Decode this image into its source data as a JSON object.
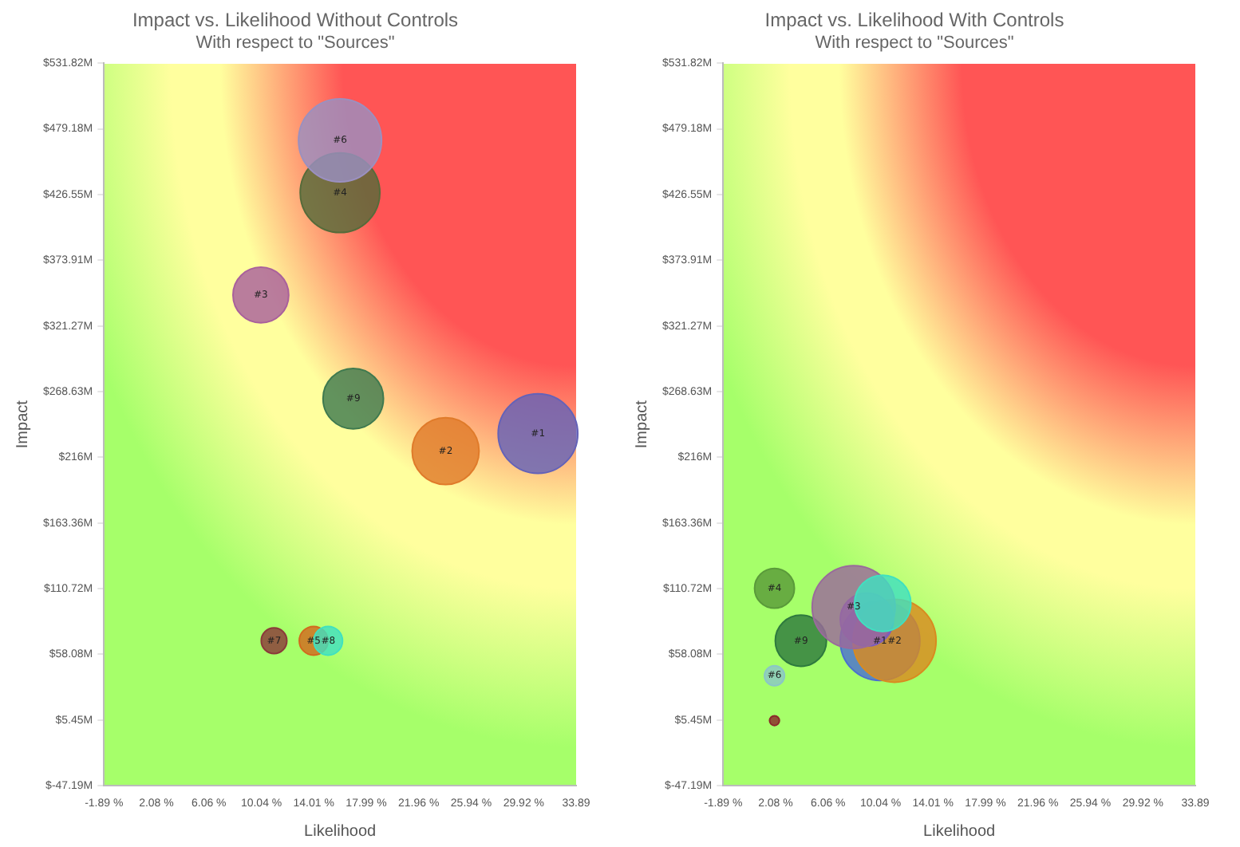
{
  "chart_data": [
    {
      "type": "bubble",
      "title": "Impact vs. Likelihood Without Controls",
      "subtitle": "With respect to \"Sources\"",
      "xlabel": "Likelihood",
      "ylabel": "Impact",
      "xlim": [
        -1.89,
        33.89
      ],
      "xticks": [
        {
          "value": -1.89,
          "label": "-1.89 %"
        },
        {
          "value": 2.08,
          "label": "2.08 %"
        },
        {
          "value": 6.06,
          "label": "6.06 %"
        },
        {
          "value": 10.04,
          "label": "10.04 %"
        },
        {
          "value": 14.01,
          "label": "14.01 %"
        },
        {
          "value": 17.99,
          "label": "17.99 %"
        },
        {
          "value": 21.96,
          "label": "21.96 %"
        },
        {
          "value": 25.94,
          "label": "25.94 %"
        },
        {
          "value": 29.92,
          "label": "29.92 %"
        },
        33.89
      ],
      "ylim": [
        -47.19,
        531.82
      ],
      "yticks": [
        {
          "value": -47.19,
          "label": "$-47.19M"
        },
        {
          "value": 5.45,
          "label": "$5.45M"
        },
        {
          "value": 58.08,
          "label": "$58.08M"
        },
        {
          "value": 110.72,
          "label": "$110.72M"
        },
        {
          "value": 163.36,
          "label": "$163.36M"
        },
        {
          "value": 216,
          "label": "$216M"
        },
        {
          "value": 268.63,
          "label": "$268.63M"
        },
        {
          "value": 321.27,
          "label": "$321.27M"
        },
        {
          "value": 373.91,
          "label": "$373.91M"
        },
        {
          "value": 426.55,
          "label": "$426.55M"
        },
        {
          "value": 479.18,
          "label": "$479.18M"
        },
        {
          "value": 531.82,
          "label": "$531.82M"
        }
      ],
      "series": [
        {
          "name": "#6",
          "color": "#9b90c0",
          "x": [
            16
          ],
          "values": [
            470
          ],
          "sizes": [
            1
          ]
        },
        {
          "name": "#4",
          "color": "#566b3a",
          "x": [
            16
          ],
          "values": [
            428
          ],
          "sizes": [
            0.92
          ]
        },
        {
          "name": "#3",
          "color": "#a9609c",
          "x": [
            10
          ],
          "values": [
            346
          ],
          "sizes": [
            0.45
          ]
        },
        {
          "name": "#9",
          "color": "#3f7a4f",
          "x": [
            17
          ],
          "values": [
            263
          ],
          "sizes": [
            0.53
          ]
        },
        {
          "name": "#2",
          "color": "#e07b2a",
          "x": [
            24
          ],
          "values": [
            221
          ],
          "sizes": [
            0.65
          ]
        },
        {
          "name": "#1",
          "color": "#6462b8",
          "x": [
            31
          ],
          "values": [
            235
          ],
          "sizes": [
            0.92
          ]
        },
        {
          "name": "#7",
          "color": "#8b3a3a",
          "x": [
            11
          ],
          "values": [
            69
          ],
          "sizes": [
            0.095
          ]
        },
        {
          "name": "#8",
          "color": "#40e0c0",
          "x": [
            15.1
          ],
          "values": [
            69
          ],
          "sizes": [
            0.12
          ]
        },
        {
          "name": "#5",
          "color": "#d2691e",
          "x": [
            14
          ],
          "values": [
            69
          ],
          "sizes": [
            0.12
          ]
        }
      ]
    },
    {
      "type": "bubble",
      "title": "Impact vs. Likelihood With Controls",
      "subtitle": "With respect to \"Sources\"",
      "xlabel": "Likelihood",
      "ylabel": "Impact",
      "xlim": [
        -1.89,
        33.89
      ],
      "xticks": [
        {
          "value": -1.89,
          "label": "-1.89 %"
        },
        {
          "value": 2.08,
          "label": "2.08 %"
        },
        {
          "value": 6.06,
          "label": "6.06 %"
        },
        {
          "value": 10.04,
          "label": "10.04 %"
        },
        {
          "value": 14.01,
          "label": "14.01 %"
        },
        {
          "value": 17.99,
          "label": "17.99 %"
        },
        {
          "value": 21.96,
          "label": "21.96 %"
        },
        {
          "value": 25.94,
          "label": "25.94 %"
        },
        {
          "value": 29.92,
          "label": "29.92 %"
        },
        33.89
      ],
      "ylim": [
        -47.19,
        531.82
      ],
      "yticks": [
        {
          "value": -47.19,
          "label": "$-47.19M"
        },
        {
          "value": 5.45,
          "label": "$5.45M"
        },
        {
          "value": 58.08,
          "label": "$58.08M"
        },
        {
          "value": 110.72,
          "label": "$110.72M"
        },
        {
          "value": 163.36,
          "label": "$163.36M"
        },
        {
          "value": 216,
          "label": "$216M"
        },
        {
          "value": 268.63,
          "label": "$268.63M"
        },
        {
          "value": 321.27,
          "label": "$321.27M"
        },
        {
          "value": 373.91,
          "label": "$373.91M"
        },
        {
          "value": 426.55,
          "label": "$426.55M"
        },
        {
          "value": 479.18,
          "label": "$479.18M"
        },
        {
          "value": 531.82,
          "label": "$531.82M"
        }
      ],
      "series": [
        {
          "color": "#40e0c0",
          "x": [
            10.2
          ],
          "values": [
            99
          ],
          "sizes": [
            0.46
          ]
        },
        {
          "name": "#3",
          "color": "#9a6a9c",
          "x": [
            8
          ],
          "values": [
            96
          ],
          "sizes": [
            1
          ]
        },
        {
          "color": "#7a5cc0",
          "x": [
            9
          ],
          "values": [
            86
          ],
          "sizes": [
            0.41
          ]
        },
        {
          "name": "#2",
          "color": "#d98a20",
          "x": [
            11.1
          ],
          "values": [
            69
          ],
          "sizes": [
            1
          ]
        },
        {
          "name": "#1",
          "color": "#4b6fd0",
          "x": [
            10
          ],
          "values": [
            69
          ],
          "sizes": [
            0.92
          ]
        },
        {
          "name": "#9",
          "color": "#2e7a3e",
          "x": [
            4
          ],
          "values": [
            69
          ],
          "sizes": [
            0.38
          ]
        },
        {
          "name": "#4",
          "color": "#5a9a3a",
          "x": [
            2
          ],
          "values": [
            111
          ],
          "sizes": [
            0.23
          ]
        },
        {
          "name": "#6",
          "color": "#8ac6c6",
          "x": [
            2
          ],
          "values": [
            41
          ],
          "sizes": [
            0.058
          ]
        },
        {
          "color": "#8b2a2a",
          "x": [
            2
          ],
          "values": [
            5
          ],
          "sizes": [
            0.014
          ]
        }
      ]
    }
  ]
}
